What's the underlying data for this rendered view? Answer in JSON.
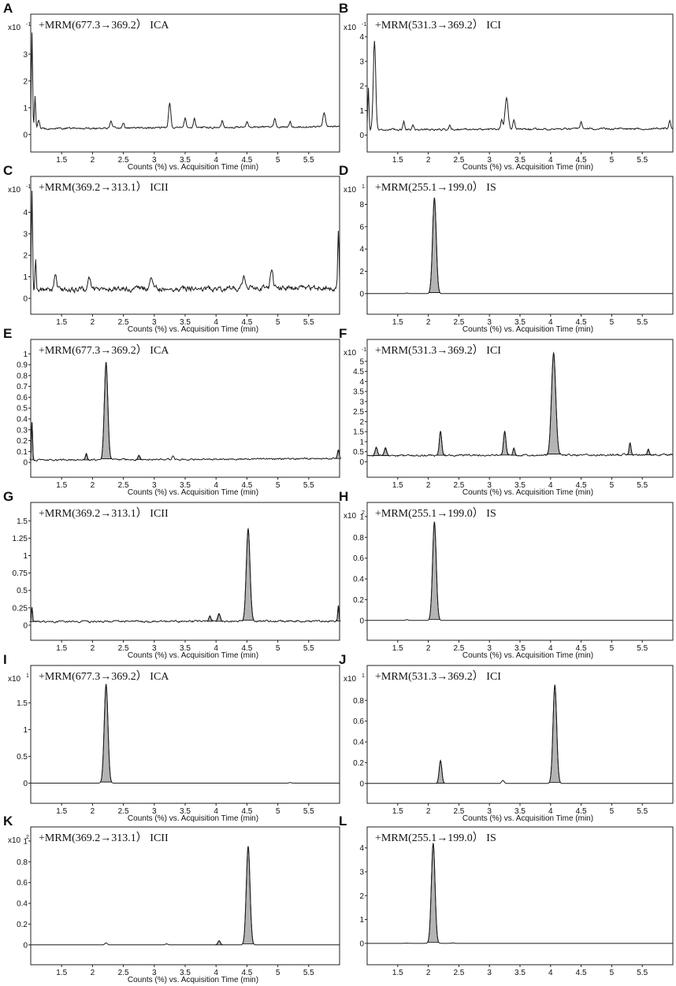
{
  "chart_data": [
    {
      "panel": "A",
      "type": "line",
      "title": "+MRM(677.3→369.2） ICA",
      "scale_label": "x10",
      "scale_exponent": "-1",
      "xlabel": "Counts (%) vs. Acquisition Time (min)",
      "xlim": [
        1.0,
        6.0
      ],
      "xticks": [
        "1.5",
        "2",
        "2.5",
        "3",
        "3.5",
        "4",
        "4.5",
        "5",
        "5.5"
      ],
      "yticks": [
        "0",
        "1",
        "2",
        "3"
      ],
      "ylim": [
        -0.3,
        4.2
      ],
      "baseline": 0.22,
      "drift": 0.08,
      "noise": "medium",
      "peaks": [
        [
          1.02,
          3.6,
          0.01
        ],
        [
          1.07,
          1.2,
          0.01
        ],
        [
          1.13,
          0.3,
          0.015
        ],
        [
          2.3,
          0.25,
          0.015
        ],
        [
          2.5,
          0.2,
          0.015
        ],
        [
          3.25,
          0.9,
          0.018
        ],
        [
          3.5,
          0.35,
          0.015
        ],
        [
          3.65,
          0.35,
          0.015
        ],
        [
          4.1,
          0.25,
          0.015
        ],
        [
          4.5,
          0.22,
          0.015
        ],
        [
          4.95,
          0.3,
          0.015
        ],
        [
          5.2,
          0.2,
          0.015
        ],
        [
          5.75,
          0.55,
          0.02
        ]
      ],
      "filled": false
    },
    {
      "panel": "B",
      "type": "line",
      "title": "+MRM(531.3→369.2） ICI",
      "scale_label": "x10",
      "scale_exponent": "-1",
      "xlabel": "Counts (%) vs. Acquisition Time (min)",
      "xlim": [
        1.0,
        6.0
      ],
      "xticks": [
        "1.5",
        "2",
        "2.5",
        "3",
        "3.5",
        "4",
        "4.5",
        "5",
        "5.5"
      ],
      "yticks": [
        "0",
        "1",
        "2",
        "3",
        "4"
      ],
      "ylim": [
        -0.3,
        4.6
      ],
      "baseline": 0.22,
      "drift": 0.05,
      "noise": "medium",
      "peaks": [
        [
          1.02,
          1.7,
          0.01
        ],
        [
          1.12,
          3.6,
          0.02
        ],
        [
          1.6,
          0.35,
          0.015
        ],
        [
          1.75,
          0.2,
          0.015
        ],
        [
          2.35,
          0.15,
          0.015
        ],
        [
          3.2,
          0.4,
          0.015
        ],
        [
          3.28,
          1.3,
          0.025
        ],
        [
          3.4,
          0.35,
          0.015
        ],
        [
          4.5,
          0.25,
          0.015
        ],
        [
          5.95,
          0.35,
          0.015
        ]
      ],
      "filled": false
    },
    {
      "panel": "C",
      "type": "line",
      "title": "+MRM(369.2→313.1） ICII",
      "scale_label": "x10",
      "scale_exponent": "-1",
      "xlabel": "Counts (%) vs. Acquisition Time (min)",
      "xlim": [
        1.0,
        6.0
      ],
      "xticks": [
        "1.5",
        "2",
        "2.5",
        "3",
        "3.5",
        "4",
        "4.5",
        "5",
        "5.5"
      ],
      "yticks": [
        "0",
        "1",
        "2",
        "3",
        "4"
      ],
      "ylim": [
        -0.3,
        5.3
      ],
      "baseline": 0.4,
      "drift": 0.1,
      "noise": "high",
      "peaks": [
        [
          1.02,
          4.5,
          0.01
        ],
        [
          1.08,
          1.5,
          0.01
        ],
        [
          1.4,
          0.6,
          0.02
        ],
        [
          1.95,
          0.5,
          0.02
        ],
        [
          2.95,
          0.6,
          0.02
        ],
        [
          4.45,
          0.6,
          0.02
        ],
        [
          4.9,
          0.9,
          0.02
        ],
        [
          5.98,
          2.6,
          0.01
        ]
      ],
      "filled": false
    },
    {
      "panel": "D",
      "type": "line",
      "title": "+MRM(255.1→199.0） IS",
      "scale_label": "x10",
      "scale_exponent": "1",
      "xlabel": "Counts (%) vs. Acquisition Time (min)",
      "xlim": [
        1.0,
        6.0
      ],
      "xticks": [
        "1.5",
        "2",
        "2.5",
        "3",
        "3.5",
        "4",
        "4.5",
        "5",
        "5.5"
      ],
      "yticks": [
        "0",
        "2",
        "4",
        "6",
        "8"
      ],
      "ylim": [
        -1.0,
        9.8
      ],
      "baseline": 0.0,
      "drift": 0.0,
      "noise": "none",
      "peaks": [
        [
          1.65,
          0.05,
          0.02
        ],
        [
          2.1,
          8.6,
          0.03
        ]
      ],
      "filled": true
    },
    {
      "panel": "E",
      "type": "line",
      "title": "+MRM(677.3→369.2） ICA",
      "scale_label": "",
      "scale_exponent": "",
      "xlabel": "Counts (%) vs. Acquisition Time (min)",
      "xlim": [
        1.0,
        6.0
      ],
      "xticks": [
        "1.5",
        "2",
        "2.5",
        "3",
        "3.5",
        "4",
        "4.5",
        "5",
        "5.5"
      ],
      "yticks": [
        "0",
        "0.1",
        "0.2",
        "0.3",
        "0.4",
        "0.5",
        "0.6",
        "0.7",
        "0.8",
        "0.9",
        "1"
      ],
      "ylim": [
        -0.05,
        1.06
      ],
      "baseline": 0.02,
      "drift": 0.015,
      "noise": "low",
      "peaks": [
        [
          1.02,
          0.35,
          0.01
        ],
        [
          1.9,
          0.06,
          0.015
        ],
        [
          2.22,
          0.9,
          0.028
        ],
        [
          2.75,
          0.04,
          0.015
        ],
        [
          3.3,
          0.03,
          0.015
        ],
        [
          5.98,
          0.08,
          0.015
        ]
      ],
      "filled": true
    },
    {
      "panel": "F",
      "type": "line",
      "title": "+MRM(531.3→369.2） ICI",
      "scale_label": "x10",
      "scale_exponent": "-1",
      "xlabel": "Counts (%) vs. Acquisition Time (min)",
      "xlim": [
        1.0,
        6.0
      ],
      "xticks": [
        "1.5",
        "2",
        "2.5",
        "3",
        "3.5",
        "4",
        "4.5",
        "5",
        "5.5"
      ],
      "yticks": [
        "0",
        "0.5",
        "1",
        "1.5",
        "2",
        "2.5",
        "3",
        "3.5",
        "4",
        "4.5",
        "5"
      ],
      "ylim": [
        -0.3,
        5.7
      ],
      "baseline": 0.3,
      "drift": 0.05,
      "noise": "medium",
      "peaks": [
        [
          1.15,
          0.4,
          0.02
        ],
        [
          1.3,
          0.4,
          0.02
        ],
        [
          2.2,
          1.2,
          0.02
        ],
        [
          3.25,
          1.2,
          0.02
        ],
        [
          3.4,
          0.35,
          0.015
        ],
        [
          4.05,
          5.1,
          0.035
        ],
        [
          5.3,
          0.6,
          0.015
        ],
        [
          5.6,
          0.25,
          0.015
        ]
      ],
      "filled": true
    },
    {
      "panel": "G",
      "type": "line",
      "title": "+MRM(369.2→313.1） ICII",
      "scale_label": "",
      "scale_exponent": "",
      "xlabel": "Counts (%) vs. Acquisition Time (min)",
      "xlim": [
        1.0,
        6.0
      ],
      "xticks": [
        "1.5",
        "2",
        "2.5",
        "3",
        "3.5",
        "4",
        "4.5",
        "5",
        "5.5"
      ],
      "yticks": [
        "0",
        "0.25",
        "0.5",
        "0.75",
        "1",
        "1.25",
        "1.5"
      ],
      "ylim": [
        -0.08,
        1.65
      ],
      "baseline": 0.05,
      "drift": 0.01,
      "noise": "medium",
      "peaks": [
        [
          1.02,
          0.2,
          0.01
        ],
        [
          3.9,
          0.08,
          0.015
        ],
        [
          4.05,
          0.1,
          0.02
        ],
        [
          4.52,
          1.33,
          0.03
        ],
        [
          5.98,
          0.22,
          0.01
        ]
      ],
      "filled": true
    },
    {
      "panel": "H",
      "type": "line",
      "title": "+MRM(255.1→199.0） IS",
      "scale_label": "x10",
      "scale_exponent": "2",
      "xlabel": "Counts (%) vs. Acquisition Time (min)",
      "xlim": [
        1.0,
        6.0
      ],
      "xticks": [
        "1.5",
        "2",
        "2.5",
        "3",
        "3.5",
        "4",
        "4.5",
        "5",
        "5.5"
      ],
      "yticks": [
        "0",
        "0.2",
        "0.4",
        "0.6",
        "0.8",
        "1"
      ],
      "ylim": [
        -0.1,
        1.06
      ],
      "baseline": 0.0,
      "drift": 0.0,
      "noise": "none",
      "peaks": [
        [
          1.65,
          0.008,
          0.02
        ],
        [
          2.1,
          0.95,
          0.03
        ]
      ],
      "filled": true
    },
    {
      "panel": "I",
      "type": "line",
      "title": "+MRM(677.3→369.2） ICA",
      "scale_label": "x10",
      "scale_exponent": "1",
      "xlabel": "Counts (%) vs. Acquisition Time (min)",
      "xlim": [
        1.0,
        6.0
      ],
      "xticks": [
        "1.5",
        "2",
        "2.5",
        "3",
        "3.5",
        "4",
        "4.5",
        "5",
        "5.5"
      ],
      "yticks": [
        "0",
        "0.5",
        "1",
        "1.5"
      ],
      "ylim": [
        -0.2,
        2.05
      ],
      "baseline": 0.0,
      "drift": 0.0,
      "noise": "none",
      "peaks": [
        [
          2.22,
          1.85,
          0.03
        ],
        [
          5.2,
          0.01,
          0.02
        ]
      ],
      "filled": true
    },
    {
      "panel": "J",
      "type": "line",
      "title": "+MRM(531.3→369.2） ICI",
      "scale_label": "x10",
      "scale_exponent": "1",
      "xlabel": "Counts (%) vs. Acquisition Time (min)",
      "xlim": [
        1.0,
        6.0
      ],
      "xticks": [
        "1.5",
        "2",
        "2.5",
        "3",
        "3.5",
        "4",
        "4.5",
        "5",
        "5.5"
      ],
      "yticks": [
        "0",
        "0.2",
        "0.4",
        "0.6",
        "0.8"
      ],
      "ylim": [
        -0.1,
        1.06
      ],
      "baseline": 0.0,
      "drift": 0.0,
      "noise": "none",
      "peaks": [
        [
          2.2,
          0.22,
          0.022
        ],
        [
          3.22,
          0.03,
          0.02
        ],
        [
          4.07,
          0.95,
          0.03
        ]
      ],
      "filled": true
    },
    {
      "panel": "K",
      "type": "line",
      "title": "+MRM(369.2→313.1） ICII",
      "scale_label": "x10",
      "scale_exponent": "2",
      "xlabel": "Counts (%) vs. Acquisition Time (min)",
      "xlim": [
        1.0,
        6.0
      ],
      "xticks": [
        "1.5",
        "2",
        "2.5",
        "3",
        "3.5",
        "4",
        "4.5",
        "5",
        "5.5"
      ],
      "yticks": [
        "0",
        "0.2",
        "0.4",
        "0.6",
        "0.8",
        "1"
      ],
      "ylim": [
        -0.1,
        1.06
      ],
      "baseline": 0.0,
      "drift": 0.0,
      "noise": "none",
      "peaks": [
        [
          2.22,
          0.02,
          0.02
        ],
        [
          3.2,
          0.01,
          0.02
        ],
        [
          4.05,
          0.04,
          0.02
        ],
        [
          4.52,
          0.95,
          0.03
        ]
      ],
      "filled": true
    },
    {
      "panel": "L",
      "type": "line",
      "title": "+MRM(255.1→199.0） IS",
      "scale_label": "",
      "scale_exponent": "",
      "xlabel": "",
      "xlim": [
        1.0,
        6.0
      ],
      "xticks": [
        "1.5",
        "2",
        "2.5",
        "3",
        "3.5",
        "4",
        "4.5",
        "5",
        "5.5"
      ],
      "yticks": [
        "0",
        "1",
        "2",
        "3",
        "4"
      ],
      "ylim": [
        -0.5,
        4.55
      ],
      "baseline": 0.0,
      "drift": 0.0,
      "noise": "none",
      "peaks": [
        [
          1.65,
          0.01,
          0.02
        ],
        [
          2.08,
          4.2,
          0.03
        ],
        [
          2.4,
          0.02,
          0.02
        ]
      ],
      "filled": true
    }
  ]
}
